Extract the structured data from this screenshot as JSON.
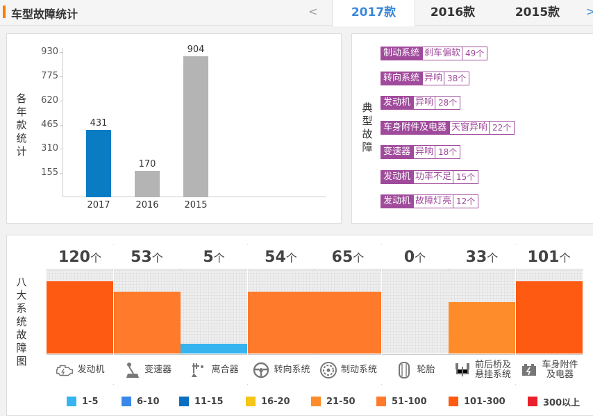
{
  "header": {
    "title": "车型故障统计",
    "prev": "<",
    "next": ">",
    "tabs": [
      {
        "label": "2017款",
        "active": true
      },
      {
        "label": "2016款",
        "active": false
      },
      {
        "label": "2015款",
        "active": false
      }
    ]
  },
  "chart_data": {
    "type": "bar",
    "title": "",
    "ylabel": "各年款统计",
    "categories": [
      "2017",
      "2016",
      "2015"
    ],
    "values": [
      431,
      170,
      904
    ],
    "ylim": [
      0,
      930
    ],
    "yticks": [
      155,
      310,
      465,
      620,
      775,
      930
    ],
    "colors": [
      "#0a7cc4",
      "#b4b4b4",
      "#b4b4b4"
    ]
  },
  "faults": {
    "label": "典型故障",
    "items": [
      {
        "sys": "制动系统",
        "desc": "刹车偏软",
        "count": "49个"
      },
      {
        "sys": "转向系统",
        "desc": "异响",
        "count": "38个"
      },
      {
        "sys": "发动机",
        "desc": "异响",
        "count": "28个"
      },
      {
        "sys": "车身附件及电器",
        "desc": "天窗异响",
        "count": "22个"
      },
      {
        "sys": "变速器",
        "desc": "异响",
        "count": "18个"
      },
      {
        "sys": "发动机",
        "desc": "功率不足",
        "count": "15个"
      },
      {
        "sys": "发动机",
        "desc": "故障灯亮",
        "count": "12个"
      }
    ]
  },
  "systems": {
    "label": "八大系统故障图",
    "unit": "个",
    "items": [
      {
        "name": "发动机",
        "count": "120",
        "level": 0.87,
        "color": "#ff5a12",
        "icon": "engine-icon"
      },
      {
        "name": "变速器",
        "count": "53",
        "level": 0.74,
        "color": "#ff7a2a",
        "icon": "gear-shift-icon"
      },
      {
        "name": "离合器",
        "count": "5",
        "level": 0.12,
        "color": "#35b4f0",
        "icon": "clutch-pedal-icon"
      },
      {
        "name": "转向系统",
        "count": "54",
        "level": 0.74,
        "color": "#ff7a2a",
        "icon": "steering-wheel-icon"
      },
      {
        "name": "制动系统",
        "count": "65",
        "level": 0.74,
        "color": "#ff7a2a",
        "icon": "brake-disc-icon"
      },
      {
        "name": "轮胎",
        "count": "0",
        "level": 0,
        "color": "#efefef",
        "icon": "tire-icon"
      },
      {
        "name": "前后桥及悬挂系统",
        "line1": "前后桥及",
        "line2": "悬挂系统",
        "count": "33",
        "level": 0.62,
        "color": "#ff8c2a",
        "icon": "suspension-icon"
      },
      {
        "name": "车身附件及电器",
        "line1": "车身附件",
        "line2": "及电器",
        "count": "101",
        "level": 0.87,
        "color": "#ff5a12",
        "icon": "battery-icon"
      }
    ]
  },
  "legend": [
    {
      "label": "1-5",
      "color": "#35b4f0"
    },
    {
      "label": "6-10",
      "color": "#3a88e8"
    },
    {
      "label": "11-15",
      "color": "#0a6fc0"
    },
    {
      "label": "16-20",
      "color": "#f5c518"
    },
    {
      "label": "21-50",
      "color": "#ff8c2a"
    },
    {
      "label": "51-100",
      "color": "#ff7a2a"
    },
    {
      "label": "101-300",
      "color": "#ff5a12"
    },
    {
      "label": "300以上",
      "color": "#e8202a"
    }
  ]
}
